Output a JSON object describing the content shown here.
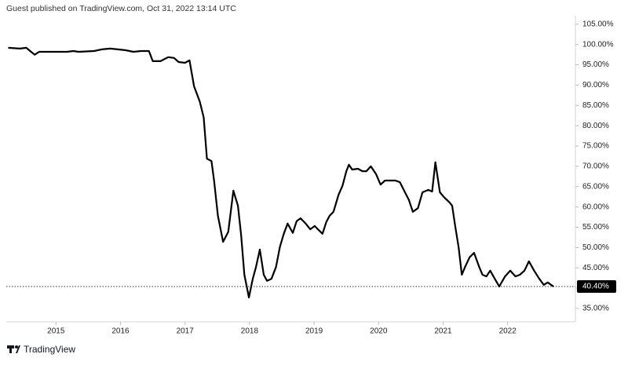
{
  "chart_data": {
    "type": "line",
    "title": "Guest published on TradingView.com, Oct 31, 2022 13:14 UTC",
    "source": "TradingView",
    "color": "#000000",
    "x": [
      2014.26,
      2014.44,
      2014.54,
      2014.6,
      2014.67,
      2014.74,
      2014.99,
      2015.17,
      2015.27,
      2015.35,
      2015.59,
      2015.71,
      2015.84,
      2015.96,
      2016.08,
      2016.2,
      2016.32,
      2016.44,
      2016.5,
      2016.62,
      2016.74,
      2016.83,
      2016.9,
      2017.0,
      2017.07,
      2017.14,
      2017.23,
      2017.29,
      2017.34,
      2017.41,
      2017.45,
      2017.51,
      2017.59,
      2017.67,
      2017.75,
      2017.82,
      2017.87,
      2017.92,
      2017.99,
      2018.05,
      2018.1,
      2018.16,
      2018.22,
      2018.27,
      2018.34,
      2018.41,
      2018.47,
      2018.53,
      2018.59,
      2018.67,
      2018.73,
      2018.79,
      2018.87,
      2018.94,
      2019.01,
      2019.06,
      2019.13,
      2019.19,
      2019.24,
      2019.3,
      2019.38,
      2019.44,
      2019.5,
      2019.54,
      2019.59,
      2019.68,
      2019.75,
      2019.81,
      2019.88,
      2019.96,
      2020.03,
      2020.1,
      2020.18,
      2020.26,
      2020.33,
      2020.39,
      2020.47,
      2020.53,
      2020.61,
      2020.68,
      2020.77,
      2020.83,
      2020.88,
      2020.95,
      2021.02,
      2021.1,
      2021.14,
      2021.19,
      2021.24,
      2021.29,
      2021.34,
      2021.41,
      2021.48,
      2021.56,
      2021.61,
      2021.67,
      2021.73,
      2021.8,
      2021.87,
      2021.96,
      2022.04,
      2022.12,
      2022.19,
      2022.26,
      2022.33,
      2022.41,
      2022.49,
      2022.56,
      2022.62,
      2022.71
    ],
    "values": [
      99.2,
      99.0,
      99.2,
      98.4,
      97.5,
      98.2,
      98.2,
      98.2,
      98.4,
      98.2,
      98.4,
      98.8,
      99.0,
      98.8,
      98.6,
      98.2,
      98.4,
      98.4,
      95.9,
      95.9,
      96.9,
      96.7,
      95.7,
      95.5,
      96.1,
      89.7,
      85.9,
      82.0,
      71.9,
      71.3,
      66.5,
      57.8,
      51.4,
      53.9,
      64.0,
      60.3,
      53.0,
      43.3,
      37.7,
      42.3,
      45.2,
      49.5,
      43.3,
      41.8,
      42.3,
      45.2,
      50.1,
      53.4,
      55.9,
      53.6,
      56.5,
      57.2,
      55.9,
      54.5,
      55.3,
      54.5,
      53.4,
      56.3,
      57.8,
      58.8,
      63.0,
      65.2,
      68.8,
      70.4,
      69.2,
      69.4,
      68.8,
      68.8,
      70.0,
      68.1,
      65.5,
      66.5,
      66.5,
      66.5,
      66.1,
      64.2,
      61.7,
      58.8,
      59.7,
      63.6,
      64.2,
      63.8,
      71.0,
      63.6,
      62.3,
      61.1,
      60.3,
      55.0,
      50.1,
      43.3,
      45.2,
      47.6,
      48.7,
      45.2,
      43.3,
      42.9,
      44.3,
      42.3,
      40.4,
      42.9,
      44.3,
      42.9,
      43.3,
      44.3,
      46.6,
      44.3,
      42.3,
      40.8,
      41.4,
      40.4
    ],
    "last_value": {
      "value": 40.4,
      "label": "40.40%"
    },
    "xlim": [
      2014.23,
      2023.05
    ],
    "xticks": [
      2015,
      2016,
      2017,
      2018,
      2019,
      2020,
      2021,
      2022
    ],
    "ylim": [
      31.7,
      107.1
    ],
    "yticks": [
      {
        "value": 35,
        "label": "35.00%"
      },
      {
        "value": 40,
        "label": "40.00%"
      },
      {
        "value": 45,
        "label": "45.00%"
      },
      {
        "value": 50,
        "label": "50.00%"
      },
      {
        "value": 55,
        "label": "55.00%"
      },
      {
        "value": 60,
        "label": "60.00%"
      },
      {
        "value": 65,
        "label": "65.00%"
      },
      {
        "value": 70,
        "label": "70.00%"
      },
      {
        "value": 75,
        "label": "75.00%"
      },
      {
        "value": 80,
        "label": "80.00%"
      },
      {
        "value": 85,
        "label": "85.00%"
      },
      {
        "value": 90,
        "label": "90.00%"
      },
      {
        "value": 95,
        "label": "95.00%"
      },
      {
        "value": 100,
        "label": "100.00%"
      },
      {
        "value": 105,
        "label": "105.00%"
      }
    ]
  }
}
